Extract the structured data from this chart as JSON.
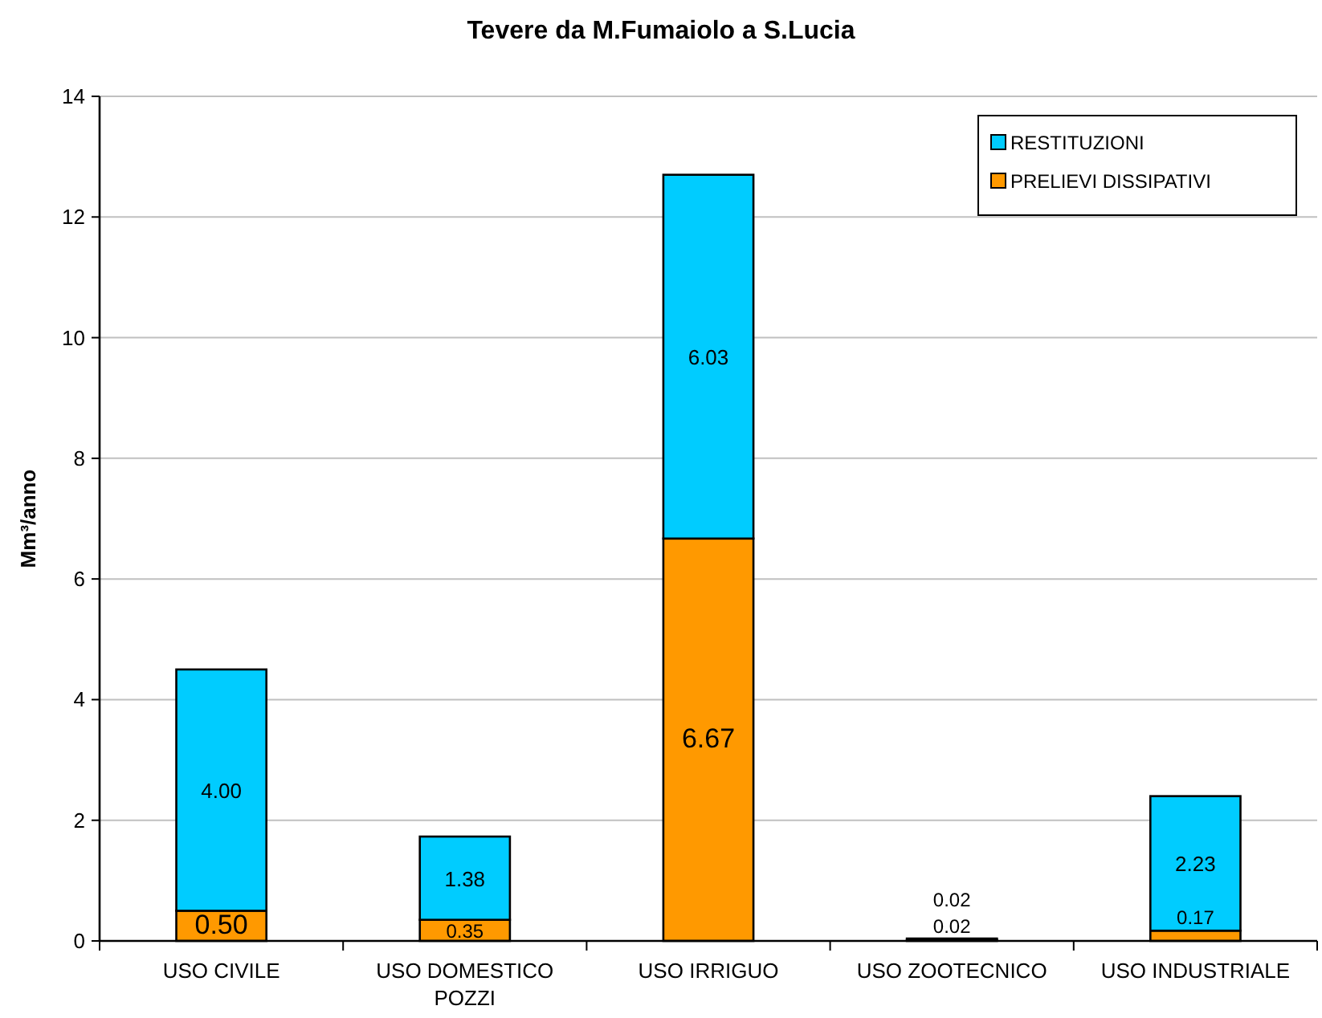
{
  "chart_data": {
    "type": "bar",
    "title": "Tevere da M.Fumaiolo a S.Lucia",
    "ylabel": "Mm³/anno",
    "categories": [
      "USO CIVILE",
      "USO DOMESTICO POZZI",
      "USO IRRIGUO",
      "USO ZOOTECNICO",
      "USO INDUSTRIALE"
    ],
    "stacked": true,
    "series": [
      {
        "name": "PRELIEVI DISSIPATIVI",
        "color": "#ff9900",
        "values": [
          0.5,
          0.35,
          6.67,
          0.02,
          0.17
        ],
        "value_labels": [
          "0.50",
          "0.35",
          "6.67",
          "0.02",
          "0.17"
        ]
      },
      {
        "name": "RESTITUZIONI",
        "color": "#00ccff",
        "values": [
          4.0,
          1.38,
          6.03,
          0.02,
          2.23
        ],
        "value_labels": [
          "4.00",
          "1.38",
          "6.03",
          "0.02",
          "2.23"
        ]
      }
    ],
    "ylim": [
      0,
      14
    ],
    "yticks": [
      0,
      2,
      4,
      6,
      8,
      10,
      12,
      14
    ],
    "grid": "y",
    "legend": "top right"
  }
}
